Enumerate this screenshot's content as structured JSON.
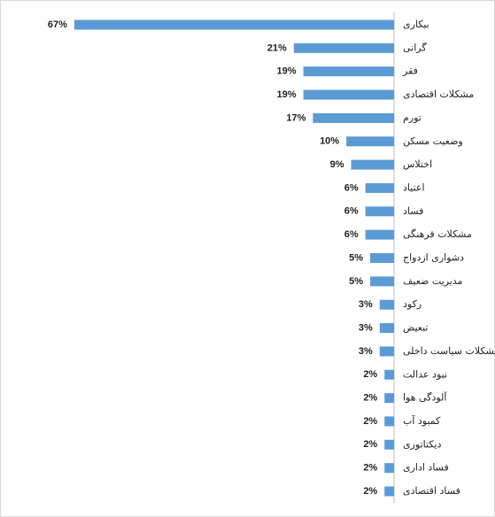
{
  "chart_data": {
    "type": "bar",
    "orientation": "horizontal",
    "color": "#5b9bd5",
    "categories": [
      "بیکاری",
      "گرانی",
      "فقر",
      "مشکلات اقتصادی",
      "تورم",
      "وضعیت مسکن",
      "اختلاس",
      "اعتیاد",
      "فساد",
      "مشکلات فرهنگی",
      "دشواری ازدواج",
      "مدیریت ضعیف",
      "رکود",
      "تبعیض",
      "مشکلات سیاست داخلی",
      "نبود عدالت",
      "آلودگی هوا",
      "کمبود آب",
      "دیکتاتوری",
      "فساد اداری",
      "فساد اقتصادی"
    ],
    "values": [
      67,
      21,
      19,
      19,
      17,
      10,
      9,
      6,
      6,
      6,
      5,
      5,
      3,
      3,
      3,
      2,
      2,
      2,
      2,
      2,
      2
    ],
    "value_labels": [
      "67%",
      "21%",
      "19%",
      "19%",
      "17%",
      "10%",
      "9%",
      "6%",
      "6%",
      "6%",
      "5%",
      "5%",
      "3%",
      "3%",
      "3%",
      "2%",
      "2%",
      "2%",
      "2%",
      "2%",
      "2%"
    ]
  }
}
